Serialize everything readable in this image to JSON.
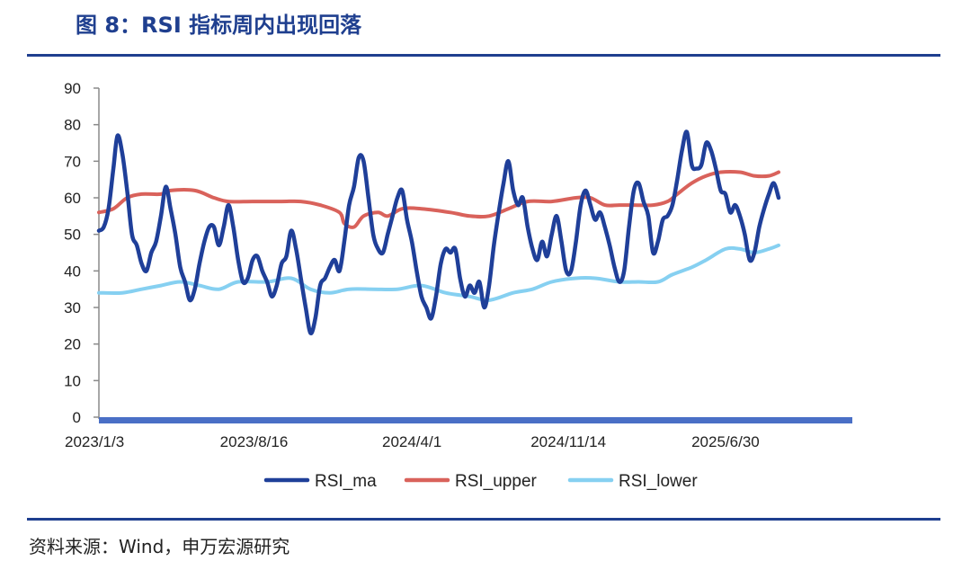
{
  "header": {
    "title": "图 8：RSI 指标周内出现回落"
  },
  "footer": {
    "source": "资料来源：Wind，申万宏源研究"
  },
  "chart_data": {
    "type": "line",
    "title": "图 8：RSI 指标周内出现回落",
    "xlabel": "",
    "ylabel": "",
    "ylim": [
      0,
      90
    ],
    "yticks": [
      0,
      10,
      20,
      30,
      40,
      50,
      60,
      70,
      80,
      90
    ],
    "xlim": [
      "2023-01-03",
      "2025-12-31"
    ],
    "xticks": [
      {
        "date": "2023-01-03",
        "label": "2023/1/3"
      },
      {
        "date": "2023-08-16",
        "label": "2023/8/16"
      },
      {
        "date": "2024-04-01",
        "label": "2024/4/1"
      },
      {
        "date": "2024-11-14",
        "label": "2024/11/14"
      },
      {
        "date": "2025-06-30",
        "label": "2025/6/30"
      }
    ],
    "grid": false,
    "legend_position": "bottom",
    "series": [
      {
        "name": "RSI_ma",
        "color": "#1f3f99",
        "points": [
          [
            "2023-01-03",
            51
          ],
          [
            "2023-01-10",
            52
          ],
          [
            "2023-01-17",
            57
          ],
          [
            "2023-01-24",
            68
          ],
          [
            "2023-01-30",
            77
          ],
          [
            "2023-02-06",
            72
          ],
          [
            "2023-02-13",
            62
          ],
          [
            "2023-02-20",
            50
          ],
          [
            "2023-02-27",
            47
          ],
          [
            "2023-03-06",
            42
          ],
          [
            "2023-03-13",
            40
          ],
          [
            "2023-03-20",
            45
          ],
          [
            "2023-03-27",
            48
          ],
          [
            "2023-04-03",
            55
          ],
          [
            "2023-04-10",
            63
          ],
          [
            "2023-04-17",
            57
          ],
          [
            "2023-04-24",
            50
          ],
          [
            "2023-05-01",
            41
          ],
          [
            "2023-05-08",
            37
          ],
          [
            "2023-05-15",
            32
          ],
          [
            "2023-05-22",
            35
          ],
          [
            "2023-05-29",
            42
          ],
          [
            "2023-06-05",
            48
          ],
          [
            "2023-06-12",
            52
          ],
          [
            "2023-06-19",
            52
          ],
          [
            "2023-06-26",
            47
          ],
          [
            "2023-07-03",
            52
          ],
          [
            "2023-07-10",
            58
          ],
          [
            "2023-07-17",
            52
          ],
          [
            "2023-07-24",
            43
          ],
          [
            "2023-07-31",
            37
          ],
          [
            "2023-08-07",
            38
          ],
          [
            "2023-08-14",
            43
          ],
          [
            "2023-08-21",
            44
          ],
          [
            "2023-08-28",
            40
          ],
          [
            "2023-09-04",
            37
          ],
          [
            "2023-09-11",
            33
          ],
          [
            "2023-09-18",
            36
          ],
          [
            "2023-09-25",
            42
          ],
          [
            "2023-10-02",
            44
          ],
          [
            "2023-10-09",
            51
          ],
          [
            "2023-10-16",
            46
          ],
          [
            "2023-10-23",
            38
          ],
          [
            "2023-10-30",
            30
          ],
          [
            "2023-11-06",
            23
          ],
          [
            "2023-11-13",
            27
          ],
          [
            "2023-11-20",
            36
          ],
          [
            "2023-11-27",
            38
          ],
          [
            "2023-12-04",
            41
          ],
          [
            "2023-12-11",
            43
          ],
          [
            "2023-12-18",
            40
          ],
          [
            "2023-12-25",
            48
          ],
          [
            "2024-01-01",
            58
          ],
          [
            "2024-01-08",
            63
          ],
          [
            "2024-01-15",
            71
          ],
          [
            "2024-01-22",
            70
          ],
          [
            "2024-01-29",
            60
          ],
          [
            "2024-02-05",
            50
          ],
          [
            "2024-02-12",
            46
          ],
          [
            "2024-02-19",
            45
          ],
          [
            "2024-02-26",
            50
          ],
          [
            "2024-03-04",
            55
          ],
          [
            "2024-03-11",
            60
          ],
          [
            "2024-03-18",
            62
          ],
          [
            "2024-03-25",
            54
          ],
          [
            "2024-04-01",
            48
          ],
          [
            "2024-04-08",
            40
          ],
          [
            "2024-04-15",
            33
          ],
          [
            "2024-04-22",
            30
          ],
          [
            "2024-04-29",
            27
          ],
          [
            "2024-05-06",
            33
          ],
          [
            "2024-05-13",
            42
          ],
          [
            "2024-05-20",
            46
          ],
          [
            "2024-05-27",
            45
          ],
          [
            "2024-06-03",
            46
          ],
          [
            "2024-06-10",
            38
          ],
          [
            "2024-06-17",
            33
          ],
          [
            "2024-06-24",
            36
          ],
          [
            "2024-07-01",
            34
          ],
          [
            "2024-07-08",
            37
          ],
          [
            "2024-07-15",
            30
          ],
          [
            "2024-07-22",
            36
          ],
          [
            "2024-07-29",
            47
          ],
          [
            "2024-08-05",
            56
          ],
          [
            "2024-08-12",
            64
          ],
          [
            "2024-08-19",
            70
          ],
          [
            "2024-08-26",
            62
          ],
          [
            "2024-09-02",
            58
          ],
          [
            "2024-09-09",
            60
          ],
          [
            "2024-09-16",
            52
          ],
          [
            "2024-09-23",
            46
          ],
          [
            "2024-09-30",
            43
          ],
          [
            "2024-10-07",
            48
          ],
          [
            "2024-10-14",
            44
          ],
          [
            "2024-10-21",
            50
          ],
          [
            "2024-10-28",
            55
          ],
          [
            "2024-11-04",
            48
          ],
          [
            "2024-11-11",
            40
          ],
          [
            "2024-11-18",
            40
          ],
          [
            "2024-11-25",
            48
          ],
          [
            "2024-12-02",
            58
          ],
          [
            "2024-12-09",
            62
          ],
          [
            "2024-12-16",
            58
          ],
          [
            "2024-12-23",
            54
          ],
          [
            "2024-12-30",
            56
          ],
          [
            "2025-01-06",
            52
          ],
          [
            "2025-01-13",
            47
          ],
          [
            "2025-01-20",
            41
          ],
          [
            "2025-01-27",
            37
          ],
          [
            "2025-02-03",
            40
          ],
          [
            "2025-02-10",
            52
          ],
          [
            "2025-02-17",
            62
          ],
          [
            "2025-02-24",
            64
          ],
          [
            "2025-03-03",
            59
          ],
          [
            "2025-03-10",
            55
          ],
          [
            "2025-03-17",
            45
          ],
          [
            "2025-03-24",
            48
          ],
          [
            "2025-03-31",
            54
          ],
          [
            "2025-04-07",
            55
          ],
          [
            "2025-04-14",
            58
          ],
          [
            "2025-04-21",
            65
          ],
          [
            "2025-04-28",
            73
          ],
          [
            "2025-05-05",
            78
          ],
          [
            "2025-05-12",
            69
          ],
          [
            "2025-05-19",
            68
          ],
          [
            "2025-05-26",
            69
          ],
          [
            "2025-06-02",
            75
          ],
          [
            "2025-06-09",
            73
          ],
          [
            "2025-06-16",
            68
          ],
          [
            "2025-06-23",
            62
          ],
          [
            "2025-06-30",
            61
          ],
          [
            "2025-07-07",
            56
          ],
          [
            "2025-07-14",
            58
          ],
          [
            "2025-07-21",
            55
          ],
          [
            "2025-07-28",
            50
          ],
          [
            "2025-08-04",
            43
          ],
          [
            "2025-08-11",
            45
          ],
          [
            "2025-08-18",
            52
          ],
          [
            "2025-08-25",
            57
          ],
          [
            "2025-09-01",
            61
          ],
          [
            "2025-09-08",
            64
          ],
          [
            "2025-09-15",
            60
          ]
        ]
      },
      {
        "name": "RSI_upper",
        "color": "#d9625b",
        "points": [
          [
            "2023-01-03",
            56
          ],
          [
            "2023-01-24",
            57
          ],
          [
            "2023-02-13",
            60
          ],
          [
            "2023-03-06",
            61
          ],
          [
            "2023-04-03",
            61
          ],
          [
            "2023-04-17",
            62
          ],
          [
            "2023-05-22",
            62
          ],
          [
            "2023-06-19",
            60
          ],
          [
            "2023-07-10",
            59
          ],
          [
            "2023-08-14",
            59
          ],
          [
            "2023-09-25",
            59
          ],
          [
            "2023-10-23",
            59
          ],
          [
            "2023-11-20",
            58
          ],
          [
            "2023-12-18",
            56
          ],
          [
            "2023-12-25",
            53
          ],
          [
            "2024-01-08",
            52
          ],
          [
            "2024-01-22",
            55
          ],
          [
            "2024-02-12",
            56
          ],
          [
            "2024-02-26",
            55
          ],
          [
            "2024-03-18",
            57
          ],
          [
            "2024-04-15",
            57
          ],
          [
            "2024-05-27",
            56
          ],
          [
            "2024-06-24",
            55
          ],
          [
            "2024-07-22",
            55
          ],
          [
            "2024-08-19",
            57
          ],
          [
            "2024-09-16",
            59
          ],
          [
            "2024-10-21",
            59
          ],
          [
            "2024-11-25",
            60
          ],
          [
            "2024-12-16",
            60
          ],
          [
            "2025-01-06",
            58
          ],
          [
            "2025-01-27",
            58
          ],
          [
            "2025-02-17",
            58
          ],
          [
            "2025-03-17",
            58
          ],
          [
            "2025-04-07",
            59
          ],
          [
            "2025-04-21",
            61
          ],
          [
            "2025-05-12",
            64
          ],
          [
            "2025-06-02",
            66
          ],
          [
            "2025-06-23",
            67
          ],
          [
            "2025-07-21",
            67
          ],
          [
            "2025-08-11",
            66
          ],
          [
            "2025-09-01",
            66
          ],
          [
            "2025-09-15",
            67
          ]
        ]
      },
      {
        "name": "RSI_lower",
        "color": "#86d0f1",
        "points": [
          [
            "2023-01-03",
            34
          ],
          [
            "2023-02-06",
            34
          ],
          [
            "2023-03-06",
            35
          ],
          [
            "2023-04-03",
            36
          ],
          [
            "2023-05-01",
            37
          ],
          [
            "2023-05-29",
            36
          ],
          [
            "2023-06-26",
            35
          ],
          [
            "2023-07-24",
            37
          ],
          [
            "2023-09-04",
            37
          ],
          [
            "2023-10-09",
            38
          ],
          [
            "2023-11-06",
            35
          ],
          [
            "2023-12-04",
            34
          ],
          [
            "2024-01-01",
            35
          ],
          [
            "2024-02-05",
            35
          ],
          [
            "2024-03-11",
            35
          ],
          [
            "2024-04-15",
            36
          ],
          [
            "2024-05-20",
            34
          ],
          [
            "2024-06-24",
            33
          ],
          [
            "2024-07-22",
            32
          ],
          [
            "2024-08-26",
            34
          ],
          [
            "2024-09-23",
            35
          ],
          [
            "2024-10-21",
            37
          ],
          [
            "2024-11-25",
            38
          ],
          [
            "2024-12-23",
            38
          ],
          [
            "2025-01-27",
            37
          ],
          [
            "2025-02-24",
            37
          ],
          [
            "2025-03-24",
            37
          ],
          [
            "2025-04-14",
            39
          ],
          [
            "2025-05-12",
            41
          ],
          [
            "2025-06-02",
            43
          ],
          [
            "2025-06-30",
            46
          ],
          [
            "2025-07-21",
            46
          ],
          [
            "2025-08-11",
            45
          ],
          [
            "2025-09-01",
            46
          ],
          [
            "2025-09-15",
            47
          ]
        ]
      }
    ]
  }
}
